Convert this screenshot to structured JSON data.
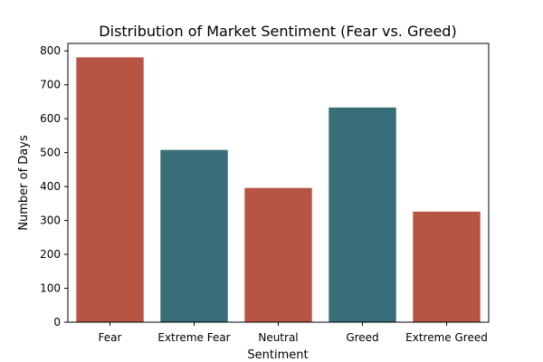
{
  "chart_data": {
    "type": "bar",
    "title": "Distribution of Market Sentiment (Fear vs. Greed)",
    "xlabel": "Sentiment",
    "ylabel": "Number of Days",
    "categories": [
      "Fear",
      "Extreme Fear",
      "Neutral",
      "Greed",
      "Extreme Greed"
    ],
    "values": [
      781,
      508,
      396,
      633,
      326
    ],
    "bar_colors": [
      "#b85444",
      "#376e77",
      "#b85444",
      "#376e77",
      "#b85444"
    ],
    "ylim": [
      0,
      822
    ],
    "yticks": [
      0,
      100,
      200,
      300,
      400,
      500,
      600,
      700,
      800
    ],
    "grid": false,
    "legend": "none"
  }
}
